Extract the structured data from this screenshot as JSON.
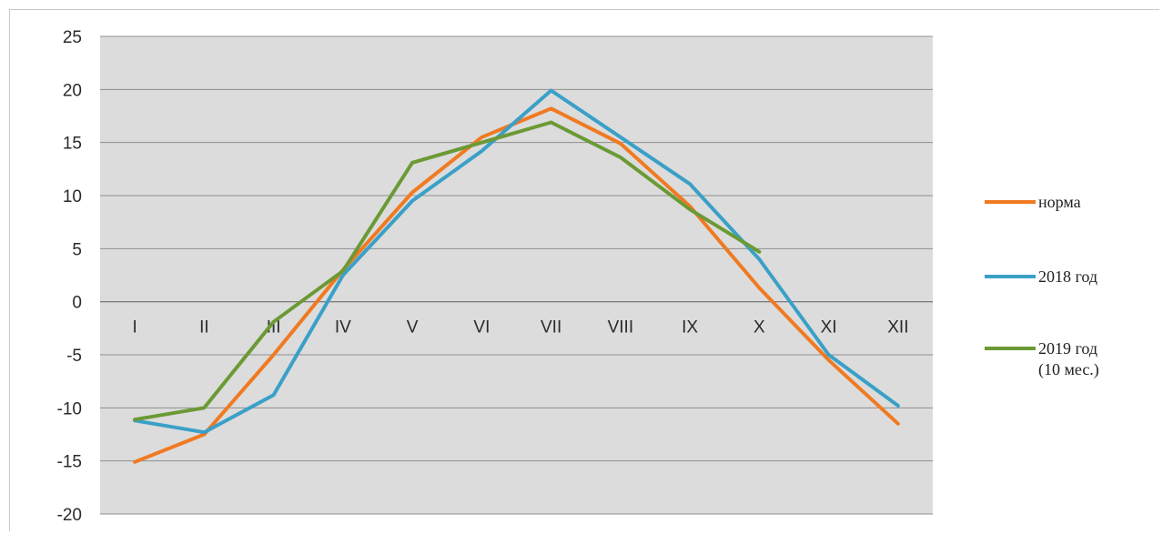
{
  "chart_data": {
    "type": "line",
    "title": "",
    "xlabel": "",
    "ylabel": "",
    "categories": [
      "I",
      "II",
      "III",
      "IV",
      "V",
      "VI",
      "VII",
      "VIII",
      "IX",
      "X",
      "XI",
      "XII"
    ],
    "ylim": [
      -20,
      25
    ],
    "yticks": [
      25,
      20,
      15,
      10,
      5,
      0,
      -5,
      -10,
      -15,
      -20
    ],
    "grid": true,
    "legend_position": "right",
    "series": [
      {
        "name": "норма",
        "color": "#f07a22",
        "values": [
          -15.1,
          -12.5,
          -5.0,
          3.0,
          10.3,
          15.5,
          18.2,
          14.9,
          9.0,
          1.3,
          -5.5,
          -11.5
        ]
      },
      {
        "name": "2018 год",
        "color": "#3aa0c8",
        "values": [
          -11.2,
          -12.3,
          -8.8,
          2.5,
          9.5,
          14.2,
          19.9,
          15.5,
          11.1,
          4.0,
          -5.0,
          -9.8
        ]
      },
      {
        "name": "2019 год (10 мес.)",
        "label_lines": [
          "2019 год",
          "(10 мес.)"
        ],
        "color": "#6b9a35",
        "values": [
          -11.1,
          -10.0,
          -1.9,
          2.9,
          13.1,
          15.0,
          16.9,
          13.6,
          8.7,
          4.7,
          null,
          null
        ]
      }
    ]
  }
}
